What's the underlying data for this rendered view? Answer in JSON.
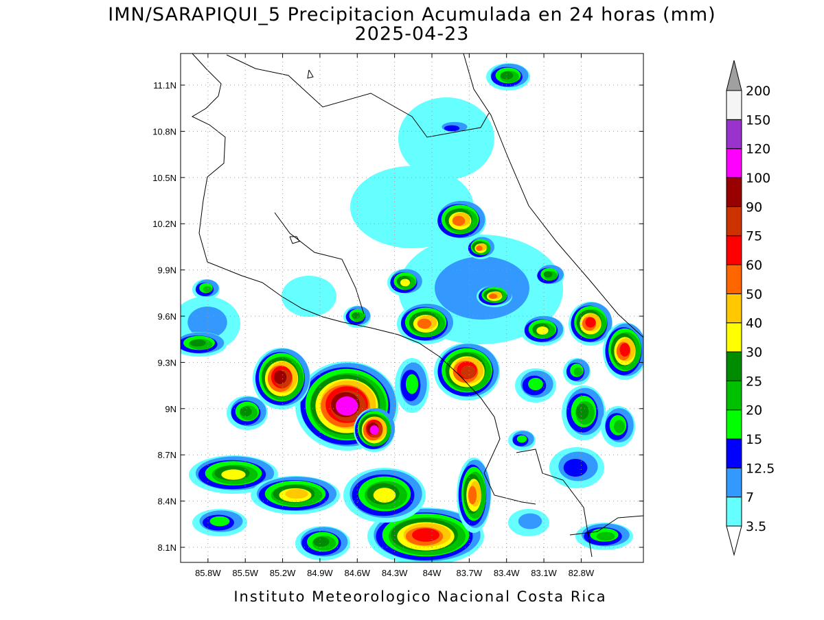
{
  "map": {
    "title": "IMN/SARAPIQUI_5 Precipitacion Acumulada en 24 horas (mm)",
    "date": "2025-04-23",
    "footer": "Instituto Meteorologico Nacional Costa Rica",
    "latlim": [
      8.002,
      11.305
    ],
    "lonlim": [
      -86.02,
      -82.3
    ],
    "latticks": [
      {
        "value": 11.1,
        "label": "11.1N"
      },
      {
        "value": 10.8,
        "label": "10.8N"
      },
      {
        "value": 10.5,
        "label": "10.5N"
      },
      {
        "value": 10.2,
        "label": "10.2N"
      },
      {
        "value": 9.9,
        "label": "9.9N"
      },
      {
        "value": 9.6,
        "label": "9.6N"
      },
      {
        "value": 9.3,
        "label": "9.3N"
      },
      {
        "value": 9,
        "label": "9N"
      },
      {
        "value": 8.7,
        "label": "8.7N"
      },
      {
        "value": 8.4,
        "label": "8.4N"
      },
      {
        "value": 8.1,
        "label": "8.1N"
      }
    ],
    "lonticks": [
      {
        "value": -85.8,
        "label": "85.8W"
      },
      {
        "value": -85.5,
        "label": "85.5W"
      },
      {
        "value": -85.2,
        "label": "85.2W"
      },
      {
        "value": -84.9,
        "label": "84.9W"
      },
      {
        "value": -84.6,
        "label": "84.6W"
      },
      {
        "value": -84.3,
        "label": "84.3W"
      },
      {
        "value": -84,
        "label": "84W"
      },
      {
        "value": -83.7,
        "label": "83.7W"
      },
      {
        "value": -83.4,
        "label": "83.4W"
      },
      {
        "value": -83.1,
        "label": "83.1W"
      },
      {
        "value": -82.8,
        "label": "82.8W"
      }
    ],
    "grid": true,
    "colorbar": {
      "levels": [
        3.5,
        7,
        12.5,
        15,
        20,
        25,
        30,
        40,
        50,
        60,
        75,
        90,
        100,
        120,
        150,
        200
      ],
      "colors": [
        "#ffffff",
        "#66ffff",
        "#3399ff",
        "#0000ff",
        "#00ff00",
        "#00c000",
        "#008c00",
        "#ffff00",
        "#ffc800",
        "#ff6600",
        "#ff0000",
        "#cc3300",
        "#990000",
        "#ff00ff",
        "#9933cc",
        "#f5f5f5",
        "#a0a0a0"
      ]
    }
  }
}
